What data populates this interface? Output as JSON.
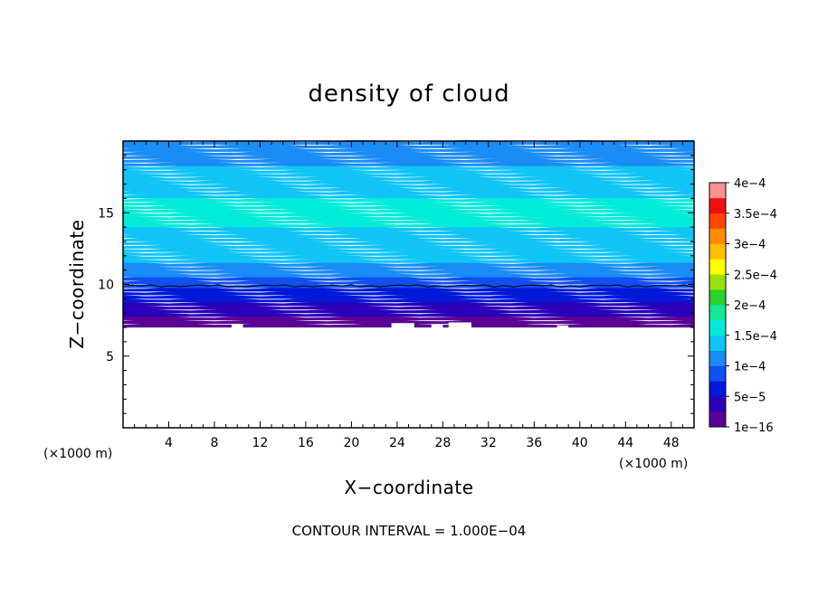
{
  "chart_data": {
    "type": "heatmap",
    "title": "density of cloud",
    "xlabel": "X−coordinate",
    "ylabel": "Z−coordinate",
    "x_unit": "(×1000 m)",
    "z_unit": "(×1000 m)",
    "xlim": [
      0,
      50
    ],
    "ylim": [
      0,
      20
    ],
    "x_ticks": [
      4,
      8,
      12,
      16,
      20,
      24,
      28,
      32,
      36,
      40,
      44,
      48
    ],
    "y_ticks": [
      5,
      10,
      15
    ],
    "colorbar": {
      "min": 1e-16,
      "max": 0.0004,
      "labels": [
        "4e−4",
        "3.5e−4",
        "3e−4",
        "2.5e−4",
        "2e−4",
        "1.5e−4",
        "1e−4",
        "5e−5",
        "1e−16"
      ],
      "colors": [
        "#5b0095",
        "#2b00b8",
        "#0018d8",
        "#1050f0",
        "#1a8cf5",
        "#10c4f6",
        "#00ecd8",
        "#14e896",
        "#2ed02e",
        "#9ae010",
        "#ffff00",
        "#ffc000",
        "#ff8c00",
        "#ff4500",
        "#ee1010",
        "#ff9090"
      ]
    },
    "contour_line_z": 9.9,
    "cloud_base_z": 7.0,
    "cloud_top_z": 20,
    "profile": [
      {
        "z": 7.0,
        "value": 1e-16
      },
      {
        "z": 8.0,
        "value": 3e-05
      },
      {
        "z": 9.0,
        "value": 6e-05
      },
      {
        "z": 10.0,
        "value": 8e-05
      },
      {
        "z": 11.0,
        "value": 0.00012
      },
      {
        "z": 13.0,
        "value": 0.000145
      },
      {
        "z": 15.0,
        "value": 0.000155
      },
      {
        "z": 17.0,
        "value": 0.000145
      },
      {
        "z": 19.0,
        "value": 0.00011
      },
      {
        "z": 20.0,
        "value": 0.000105
      }
    ],
    "contour_interval": "CONTOUR INTERVAL = 1.000E−04"
  }
}
